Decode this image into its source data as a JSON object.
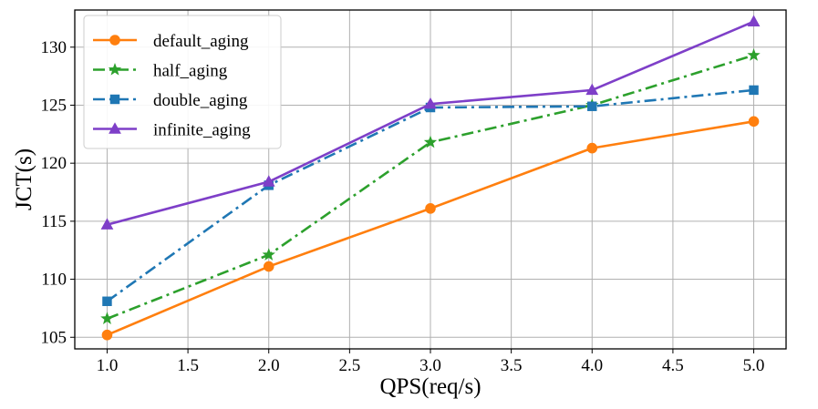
{
  "chart_data": {
    "type": "line",
    "title": "",
    "xlabel": "QPS(req/s)",
    "ylabel": "JCT(s)",
    "x": [
      1.0,
      2.0,
      3.0,
      4.0,
      5.0
    ],
    "xlim": [
      0.8,
      5.2
    ],
    "ylim": [
      104.0,
      133.2
    ],
    "xticks": [
      1.0,
      1.5,
      2.0,
      2.5,
      3.0,
      3.5,
      4.0,
      4.5,
      5.0
    ],
    "xtick_labels": [
      "1.0",
      "1.5",
      "2.0",
      "2.5",
      "3.0",
      "3.5",
      "4.0",
      "4.5",
      "5.0"
    ],
    "yticks": [
      105,
      110,
      115,
      120,
      125,
      130
    ],
    "ytick_labels": [
      "105",
      "110",
      "115",
      "120",
      "125",
      "130"
    ],
    "grid": true,
    "legend_position": "top-left",
    "series": [
      {
        "name": "default_aging",
        "color": "#ff7f0e",
        "linestyle": "solid",
        "marker": "circle",
        "values": [
          105.2,
          111.1,
          116.1,
          121.3,
          123.6
        ]
      },
      {
        "name": "half_aging",
        "color": "#2ca02c",
        "linestyle": "dashdot",
        "marker": "star",
        "values": [
          106.6,
          112.1,
          121.8,
          125.0,
          129.3
        ]
      },
      {
        "name": "double_aging",
        "color": "#1f77b4",
        "linestyle": "dashdot",
        "marker": "square",
        "values": [
          108.1,
          118.1,
          124.8,
          124.9,
          126.3
        ]
      },
      {
        "name": "infinite_aging",
        "color": "#7e3fc8",
        "linestyle": "solid",
        "marker": "triangle",
        "values": [
          114.7,
          118.4,
          125.1,
          126.3,
          132.2
        ]
      }
    ]
  }
}
